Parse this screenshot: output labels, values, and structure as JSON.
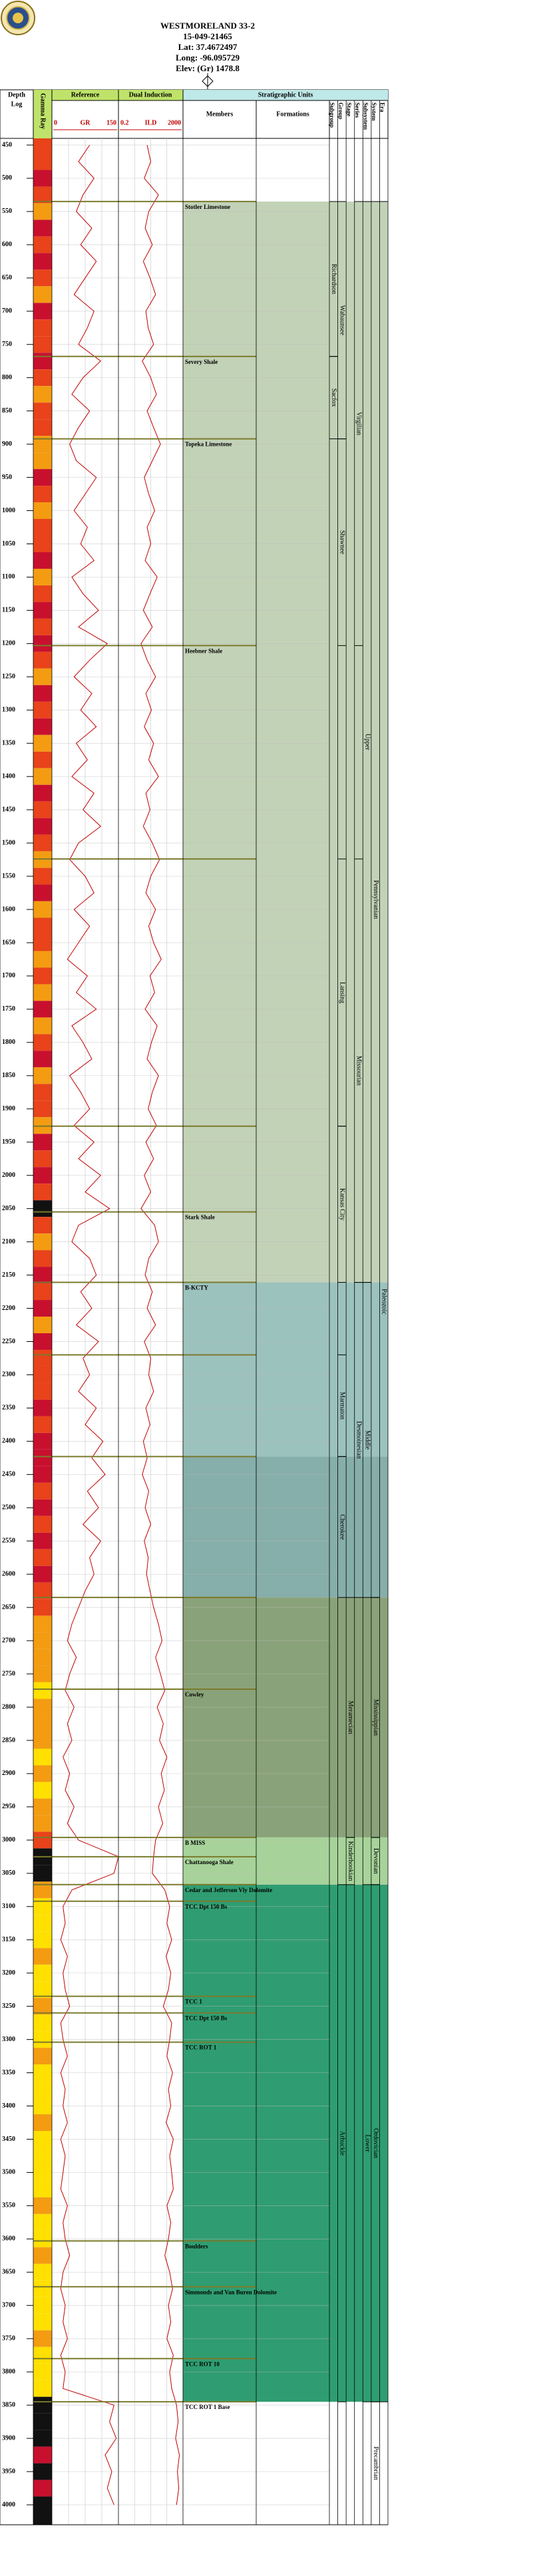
{
  "header": {
    "title": "WESTMORELAND 33-2",
    "api": "15-049-21465",
    "lat": "Lat: 37.4672497",
    "long": "Long: -96.095729",
    "elev": "Elev: (Gr) 1478.8"
  },
  "chart_data": {
    "type": "well_log",
    "column_headers": {
      "depth": "Depth",
      "log": "Log",
      "lith": "Gamma Ray",
      "reference": "Reference",
      "induction": "Dual Induction",
      "strat": "Stratigraphic Units",
      "members": "Members",
      "formations": "Formations"
    },
    "ylim": [
      440,
      4030
    ],
    "yticks": [
      450,
      500,
      550,
      600,
      650,
      700,
      750,
      800,
      850,
      900,
      950,
      1000,
      1050,
      1100,
      1150,
      1200,
      1250,
      1300,
      1350,
      1400,
      1450,
      1500,
      1550,
      1600,
      1650,
      1700,
      1750,
      1800,
      1850,
      1900,
      1950,
      2000,
      2050,
      2100,
      2150,
      2200,
      2250,
      2300,
      2350,
      2400,
      2450,
      2500,
      2550,
      2600,
      2650,
      2700,
      2750,
      2800,
      2850,
      2900,
      2950,
      3000,
      3050,
      3100,
      3150,
      3200,
      3250,
      3300,
      3350,
      3400,
      3450,
      3500,
      3550,
      3600,
      3650,
      3700,
      3750,
      3800,
      3850,
      3900,
      3950,
      4000
    ],
    "grid": true,
    "logs": {
      "depth": [
        450,
        475,
        500,
        525,
        550,
        575,
        600,
        625,
        650,
        675,
        700,
        725,
        750,
        775,
        800,
        825,
        850,
        875,
        900,
        925,
        950,
        975,
        1000,
        1025,
        1050,
        1075,
        1100,
        1125,
        1150,
        1175,
        1200,
        1225,
        1250,
        1275,
        1300,
        1325,
        1350,
        1375,
        1400,
        1425,
        1450,
        1475,
        1500,
        1525,
        1550,
        1575,
        1600,
        1625,
        1650,
        1675,
        1700,
        1725,
        1750,
        1775,
        1800,
        1825,
        1850,
        1875,
        1900,
        1925,
        1950,
        1975,
        2000,
        2025,
        2050,
        2075,
        2100,
        2125,
        2150,
        2175,
        2200,
        2225,
        2250,
        2275,
        2300,
        2325,
        2350,
        2375,
        2400,
        2425,
        2450,
        2475,
        2500,
        2525,
        2550,
        2575,
        2600,
        2625,
        2650,
        2675,
        2700,
        2725,
        2750,
        2775,
        2800,
        2825,
        2850,
        2875,
        2900,
        2925,
        2950,
        2975,
        3000,
        3025,
        3050,
        3075,
        3100,
        3125,
        3150,
        3175,
        3200,
        3225,
        3250,
        3275,
        3300,
        3325,
        3350,
        3375,
        3400,
        3425,
        3450,
        3475,
        3500,
        3525,
        3550,
        3575,
        3600,
        3625,
        3650,
        3675,
        3700,
        3725,
        3750,
        3775,
        3800,
        3825,
        3850,
        3875,
        3900,
        3925,
        3950,
        3975,
        4000
      ],
      "series": [
        {
          "name": "GR",
          "color": "#c00000",
          "xlim": [
            0,
            150
          ],
          "log_scale": false,
          "values": [
            85,
            60,
            95,
            70,
            55,
            90,
            65,
            100,
            75,
            50,
            95,
            80,
            60,
            110,
            70,
            45,
            85,
            60,
            40,
            55,
            100,
            75,
            50,
            80,
            65,
            95,
            45,
            70,
            105,
            60,
            125,
            85,
            50,
            90,
            65,
            100,
            55,
            80,
            45,
            95,
            70,
            110,
            60,
            40,
            75,
            95,
            50,
            85,
            60,
            35,
            80,
            55,
            100,
            45,
            70,
            90,
            40,
            65,
            85,
            50,
            95,
            60,
            110,
            75,
            130,
            60,
            45,
            85,
            100,
            65,
            90,
            55,
            105,
            70,
            85,
            60,
            100,
            75,
            115,
            90,
            120,
            80,
            105,
            70,
            110,
            85,
            95,
            75,
            60,
            45,
            35,
            55,
            40,
            30,
            50,
            35,
            45,
            25,
            40,
            30,
            50,
            35,
            60,
            150,
            140,
            45,
            25,
            30,
            20,
            35,
            25,
            30,
            40,
            20,
            25,
            35,
            20,
            30,
            25,
            35,
            20,
            30,
            25,
            20,
            35,
            25,
            30,
            40,
            25,
            20,
            30,
            25,
            35,
            20,
            30,
            25,
            140,
            130,
            145,
            120,
            135,
            125,
            140
          ]
        },
        {
          "name": "ILD",
          "color": "#c00000",
          "xlim": [
            0.2,
            2000
          ],
          "log_scale": true,
          "values": [
            12,
            20,
            8,
            60,
            15,
            9,
            25,
            7,
            18,
            40,
            10,
            14,
            30,
            6,
            20,
            45,
            12,
            30,
            80,
            25,
            8,
            15,
            35,
            12,
            20,
            9,
            50,
            18,
            7,
            25,
            5,
            12,
            40,
            10,
            22,
            8,
            30,
            15,
            60,
            10,
            18,
            7,
            25,
            70,
            20,
            10,
            40,
            15,
            30,
            90,
            18,
            35,
            9,
            50,
            22,
            12,
            60,
            25,
            14,
            45,
            10,
            30,
            8,
            20,
            5,
            35,
            60,
            15,
            9,
            25,
            12,
            40,
            8,
            20,
            15,
            30,
            10,
            18,
            7,
            12,
            6,
            15,
            9,
            20,
            8,
            14,
            11,
            18,
            30,
            60,
            100,
            40,
            80,
            150,
            50,
            120,
            70,
            200,
            90,
            140,
            60,
            110,
            40,
            30,
            25,
            150,
            300,
            200,
            400,
            180,
            350,
            250,
            120,
            400,
            300,
            200,
            450,
            250,
            350,
            180,
            500,
            300,
            400,
            500,
            200,
            350,
            250,
            150,
            300,
            450,
            250,
            350,
            200,
            500,
            300,
            400,
            800,
            1000,
            700,
            1200,
            900,
            1100,
            800
          ]
        }
      ]
    },
    "tops_color": "#7b7a2c",
    "tops": [
      {
        "name": "Stotler Limestone",
        "depth": 535
      },
      {
        "name": "Severy Shale",
        "depth": 768
      },
      {
        "name": "Topeka Limestone",
        "depth": 892
      },
      {
        "name": "Heebner Shale",
        "depth": 1203
      },
      {
        "name": null,
        "depth": 1524
      },
      {
        "name": null,
        "depth": 1926
      },
      {
        "name": "Stark Shale",
        "depth": 2055
      },
      {
        "name": "B-KCTY",
        "depth": 2161
      },
      {
        "name": null,
        "depth": 2270
      },
      {
        "name": null,
        "depth": 2423
      },
      {
        "name": null,
        "depth": 2635
      },
      {
        "name": "Cowley",
        "depth": 2773
      },
      {
        "name": "B MISS",
        "depth": 2996
      },
      {
        "name": "Chattanooga Shale",
        "depth": 3025
      },
      {
        "name": "Cedar and Jefferson Vly Dolomite",
        "depth": 3067
      },
      {
        "name": "TCC Dpt 150 Bs",
        "depth": 3092
      },
      {
        "name": "TCC 1",
        "depth": 3235
      },
      {
        "name": "TCC Dpt 150 Bs",
        "depth": 3260
      },
      {
        "name": "TCC ROT 1",
        "depth": 3304
      },
      {
        "name": "Boulders",
        "depth": 3603
      },
      {
        "name": "Simmonds and Van Buren Dolomite",
        "depth": 3672
      },
      {
        "name": "TCC ROT 10",
        "depth": 3780
      },
      {
        "name": "TCC ROT 1 Base",
        "depth": 3845
      }
    ],
    "zones": [
      {
        "top": 535,
        "base": 2161,
        "color": "#c2d2b7"
      },
      {
        "top": 2161,
        "base": 2423,
        "color": "#9cc2bd"
      },
      {
        "top": 2423,
        "base": 2635,
        "color": "#86aeaa"
      },
      {
        "top": 2635,
        "base": 2996,
        "color": "#8aa279"
      },
      {
        "top": 2996,
        "base": 3067,
        "color": "#a7d39a"
      },
      {
        "top": 3067,
        "base": 3845,
        "color": "#2f9d71"
      }
    ],
    "strat_columns": [
      {
        "name": "Subgroup",
        "units": [
          {
            "name": "Richardson",
            "top": 535,
            "base": 768
          },
          {
            "name": "Sacfox",
            "top": 768,
            "base": 892
          }
        ]
      },
      {
        "name": "Group",
        "units": [
          {
            "name": "Wabaunsee",
            "top": 535,
            "base": 892
          },
          {
            "name": "Shawnee",
            "top": 892,
            "base": 1203
          },
          {
            "name": "Lansing",
            "top": 1524,
            "base": 1926
          },
          {
            "name": "Kansas City",
            "top": 1926,
            "base": 2161
          },
          {
            "name": "Marmaton",
            "top": 2270,
            "base": 2423
          },
          {
            "name": "Cherokee",
            "top": 2423,
            "base": 2635
          },
          {
            "name": "Arbuckle",
            "top": 3067,
            "base": 3845
          }
        ]
      },
      {
        "name": "Stage",
        "units": [
          {
            "name": "Meramecian",
            "top": 2635,
            "base": 2996
          },
          {
            "name": "Kinderhookian",
            "top": 2996,
            "base": 3067
          }
        ]
      },
      {
        "name": "Series",
        "units": [
          {
            "name": "Virgilian",
            "top": 535,
            "base": 1203
          },
          {
            "name": "Missourian",
            "top": 1524,
            "base": 2161
          },
          {
            "name": "Desmoinesian",
            "top": 2161,
            "base": 2635
          }
        ]
      },
      {
        "name": "Subsystem",
        "units": [
          {
            "name": "Upper",
            "top": 535,
            "base": 2161
          },
          {
            "name": "Middle",
            "top": 2161,
            "base": 2635
          },
          {
            "name": "Lower",
            "top": 3067,
            "base": 3845
          }
        ]
      },
      {
        "name": "System",
        "units": [
          {
            "name": "Pennsylvanian",
            "top": 535,
            "base": 2635
          },
          {
            "name": "Mississippian",
            "top": 2635,
            "base": 2996
          },
          {
            "name": "Devonian",
            "top": 2996,
            "base": 3067
          },
          {
            "name": "Ordovician",
            "top": 3067,
            "base": 3845
          },
          {
            "name": "Precambrian",
            "top": 3845,
            "base": 4030
          }
        ]
      },
      {
        "name": "Era",
        "units": [
          {
            "name": "Paleozoic",
            "top": 535,
            "base": 3845
          }
        ]
      }
    ]
  }
}
